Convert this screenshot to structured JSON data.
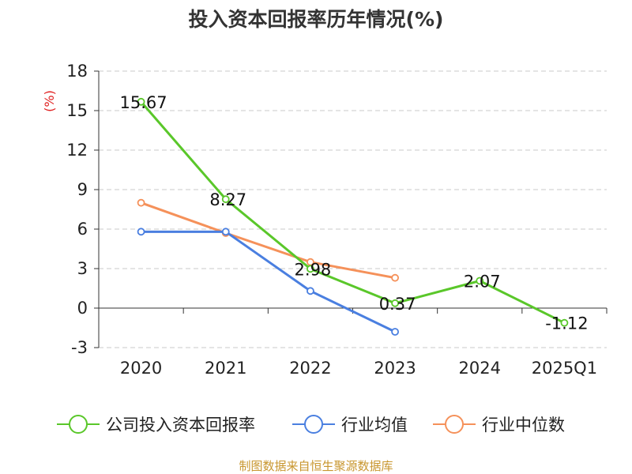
{
  "title": "投入资本回报率历年情况(%)",
  "source_note": "制图数据来自恒生聚源数据库",
  "chart_data": {
    "type": "line",
    "title": "投入资本回报率历年情况(%)",
    "ylabel": "(%)",
    "xlabel": "",
    "categories": [
      "2020",
      "2021",
      "2022",
      "2023",
      "2024",
      "2025Q1"
    ],
    "ylim": [
      -3,
      18
    ],
    "yticks": [
      "18",
      "15",
      "12",
      "9",
      "6",
      "3",
      "0",
      "-3"
    ],
    "grid": true,
    "legend_position": "bottom",
    "series": [
      {
        "name": "公司投入资本回报率",
        "color": "#5ac72a",
        "values": [
          15.67,
          8.27,
          2.98,
          0.37,
          2.07,
          -1.12
        ],
        "labels": [
          "15.67",
          "8.27",
          "2.98",
          "0.37",
          "2.07",
          "-1.12"
        ]
      },
      {
        "name": "行业均值",
        "color": "#4a7fe0",
        "values": [
          5.8,
          5.8,
          1.3,
          -1.8,
          null,
          null
        ]
      },
      {
        "name": "行业中位数",
        "color": "#f5915a",
        "values": [
          8.0,
          5.7,
          3.5,
          2.3,
          null,
          null
        ]
      }
    ]
  }
}
